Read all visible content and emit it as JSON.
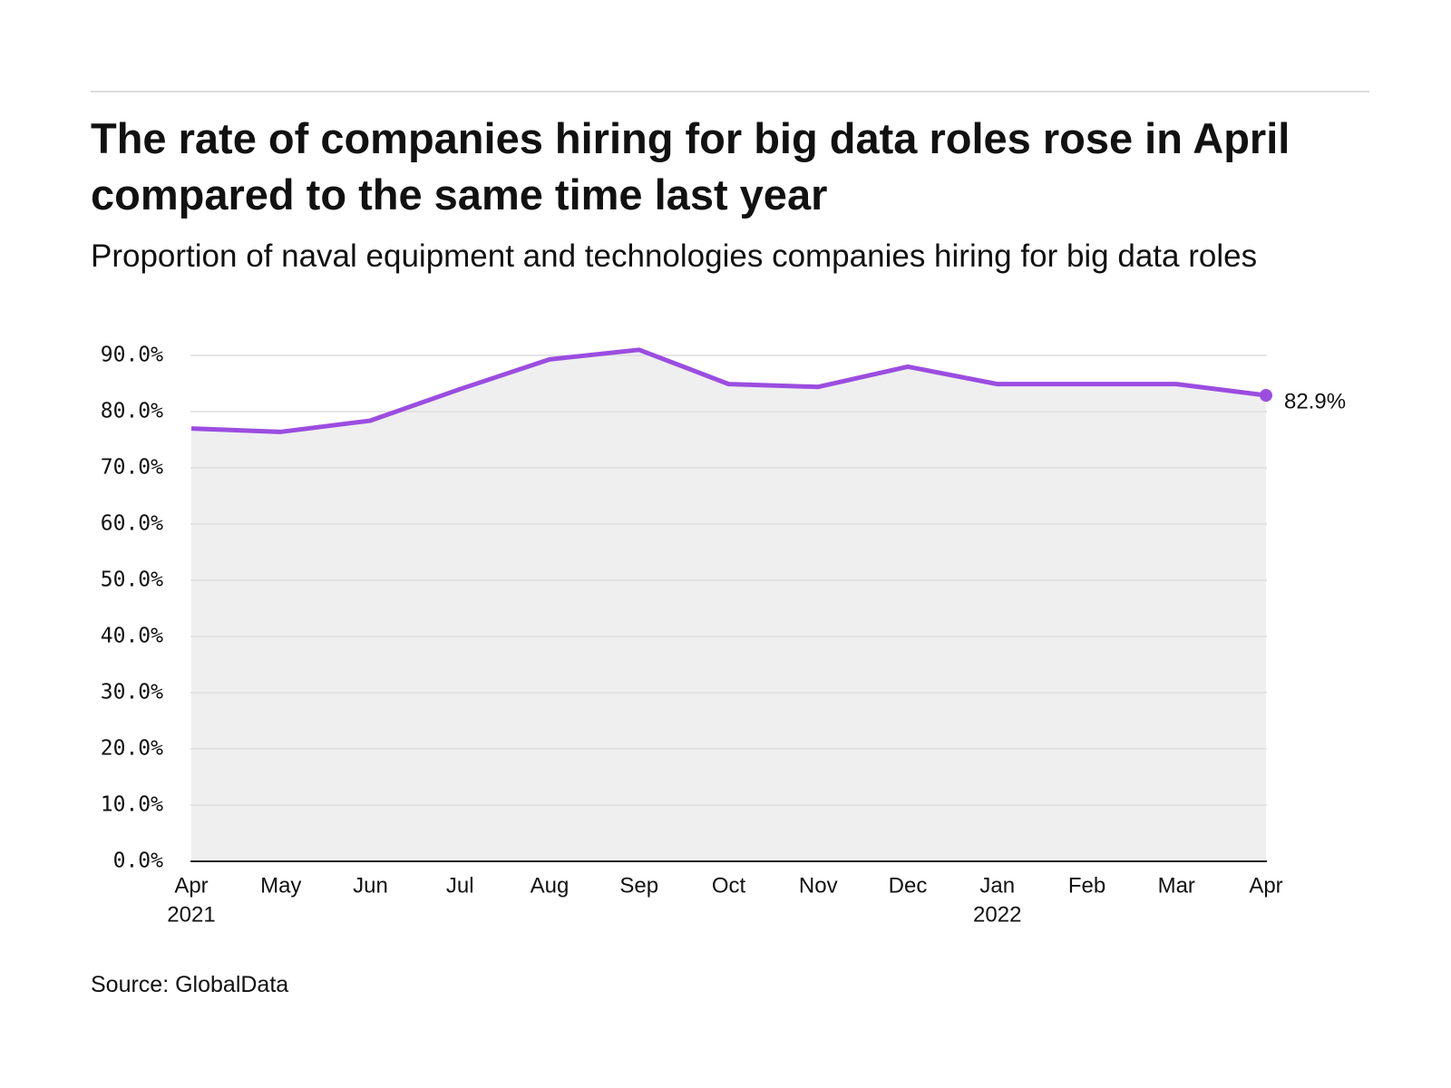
{
  "chart_data": {
    "type": "line",
    "title": "The rate of companies hiring for big data roles rose in April compared to the same time last year",
    "subtitle": "Proportion of naval equipment and technologies companies hiring for big data roles",
    "source": "Source: GlobalData",
    "categories": [
      "Apr",
      "May",
      "Jun",
      "Jul",
      "Aug",
      "Sep",
      "Oct",
      "Nov",
      "Dec",
      "Jan",
      "Feb",
      "Mar",
      "Apr"
    ],
    "category_years": [
      "2021",
      null,
      null,
      null,
      null,
      null,
      null,
      null,
      null,
      "2022",
      null,
      null,
      null
    ],
    "series": [
      {
        "color": "#9b4de0",
        "area_color": "#efefef",
        "values": [
          77.0,
          76.4,
          78.4,
          84.0,
          89.3,
          91.0,
          84.9,
          84.4,
          88.0,
          84.9,
          84.9,
          84.9,
          82.9
        ],
        "value_labels": [
          null,
          null,
          null,
          null,
          null,
          null,
          null,
          null,
          null,
          null,
          null,
          null,
          "82.9%"
        ]
      }
    ],
    "ylim": [
      0,
      90
    ],
    "yticks": [
      {
        "value": 0,
        "label": "0.0%"
      },
      {
        "value": 10,
        "label": "10.0%"
      },
      {
        "value": 20,
        "label": "20.0%"
      },
      {
        "value": 30,
        "label": "30.0%"
      },
      {
        "value": 40,
        "label": "40.0%"
      },
      {
        "value": 50,
        "label": "50.0%"
      },
      {
        "value": 60,
        "label": "60.0%"
      },
      {
        "value": 70,
        "label": "70.0%"
      },
      {
        "value": 80,
        "label": "80.0%"
      },
      {
        "value": 90,
        "label": "90.0%"
      }
    ],
    "grid": true
  }
}
